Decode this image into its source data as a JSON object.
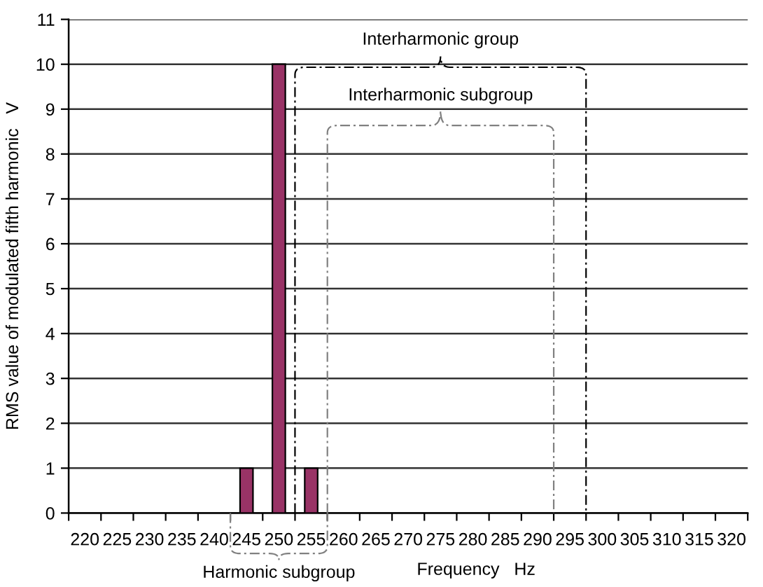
{
  "chart_data": {
    "type": "bar",
    "categories": [
      "220",
      "225",
      "230",
      "235",
      "240",
      "245",
      "250",
      "255",
      "260",
      "265",
      "270",
      "275",
      "280",
      "285",
      "290",
      "295",
      "300",
      "305",
      "310",
      "315",
      "320"
    ],
    "values": [
      null,
      null,
      null,
      null,
      null,
      1,
      10,
      1,
      null,
      null,
      null,
      null,
      null,
      null,
      null,
      null,
      null,
      null,
      null,
      null,
      null
    ],
    "color": "#993366",
    "xlabel": "Frequency   Hz",
    "ylabel": "RMS value of modulated fifth harmonic   V",
    "ylim": [
      0,
      11
    ],
    "yticks": [
      0,
      1,
      2,
      3,
      4,
      5,
      6,
      7,
      8,
      9,
      10,
      11
    ],
    "grid": "y",
    "annotations": [
      "Interharmonic group",
      "Interharmonic subgroup",
      "Harmonic subgroup"
    ]
  }
}
